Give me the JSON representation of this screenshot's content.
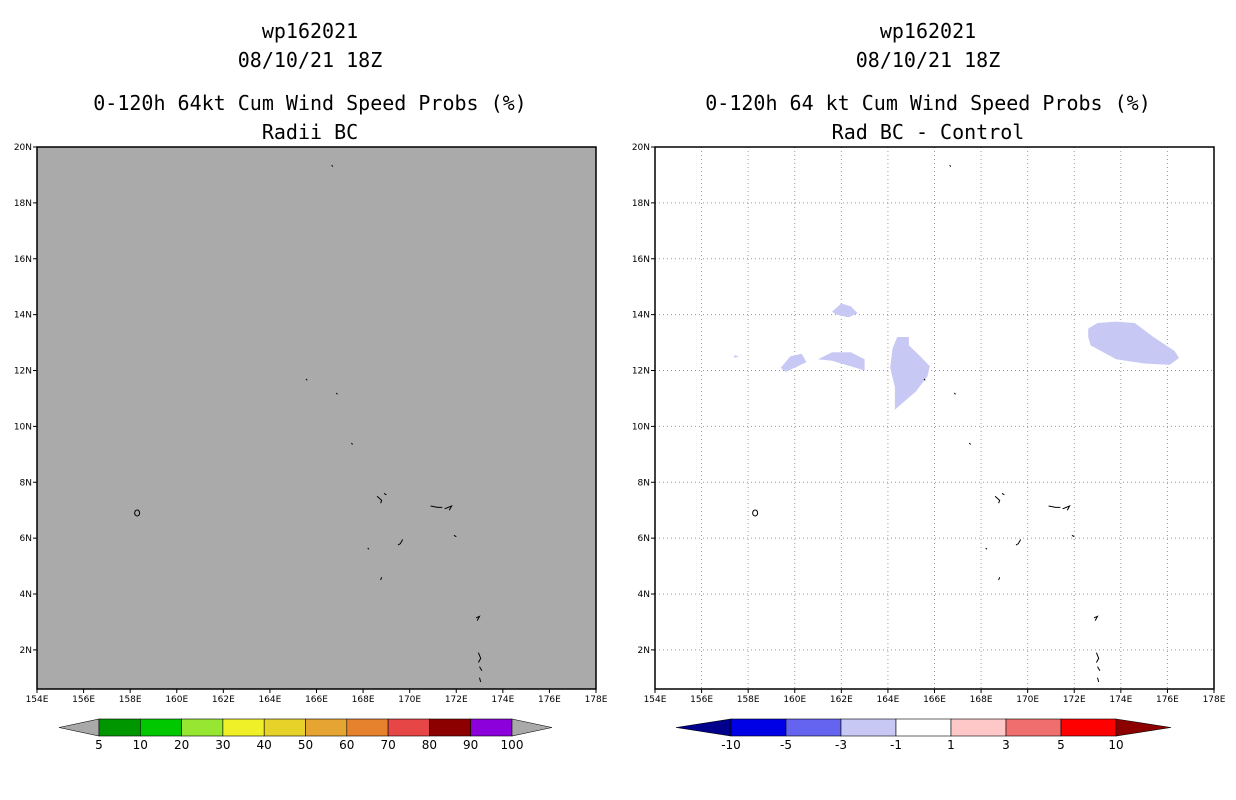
{
  "chart_data": [
    {
      "type": "map",
      "storm_id": "wp162021",
      "datetime": "08/10/21 18Z",
      "title": "0-120h 64kt Cum Wind Speed Probs (%)",
      "subtitle": "Radii BC",
      "background_color": "#aaaaaa",
      "lon_ticks": [
        "154E",
        "156E",
        "158E",
        "160E",
        "162E",
        "164E",
        "166E",
        "168E",
        "170E",
        "172E",
        "174E",
        "176E",
        "178E"
      ],
      "lat_ticks": [
        "2N",
        "4N",
        "6N",
        "8N",
        "10N",
        "12N",
        "14N",
        "16N",
        "18N",
        "20N"
      ],
      "lon_range": [
        154,
        178
      ],
      "lat_range": [
        0.6,
        20
      ],
      "colorbar": {
        "labels": [
          "5",
          "10",
          "20",
          "30",
          "40",
          "50",
          "60",
          "70",
          "80",
          "90",
          "100"
        ],
        "colors": [
          "#a9a9a9",
          "#009600",
          "#00c800",
          "#96e632",
          "#f0f028",
          "#e6d228",
          "#e6a532",
          "#e6822d",
          "#e64646",
          "#8c0000",
          "#8c00dc",
          "#a9a9a9"
        ]
      }
    },
    {
      "type": "map",
      "storm_id": "wp162021",
      "datetime": "08/10/21 18Z",
      "title": "0-120h 64 kt Cum Wind Speed Probs (%)",
      "subtitle": "Rad BC - Control",
      "background_color": "#ffffff",
      "lon_ticks": [
        "154E",
        "156E",
        "158E",
        "160E",
        "162E",
        "164E",
        "166E",
        "168E",
        "170E",
        "172E",
        "174E",
        "176E",
        "178E"
      ],
      "lat_ticks": [
        "2N",
        "4N",
        "6N",
        "8N",
        "10N",
        "12N",
        "14N",
        "16N",
        "18N",
        "20N"
      ],
      "lon_range": [
        154,
        178
      ],
      "lat_range": [
        0.6,
        20
      ],
      "regions": [
        {
          "category": "-3 to -1",
          "points": [
            [
              157.4,
              12.55
            ],
            [
              157.6,
              12.5
            ],
            [
              157.4,
              12.45
            ]
          ]
        },
        {
          "category": "-3 to -1",
          "points": [
            [
              159.4,
              12.1
            ],
            [
              159.8,
              12.5
            ],
            [
              160.3,
              12.6
            ],
            [
              160.5,
              12.3
            ],
            [
              160.0,
              12.1
            ],
            [
              159.6,
              11.95
            ]
          ]
        },
        {
          "category": "-3 to -1",
          "points": [
            [
              161.0,
              12.4
            ],
            [
              161.6,
              12.65
            ],
            [
              162.4,
              12.65
            ],
            [
              163.0,
              12.4
            ],
            [
              163.0,
              12.0
            ],
            [
              162.4,
              12.15
            ],
            [
              161.6,
              12.35
            ]
          ]
        },
        {
          "category": "-3 to -1",
          "points": [
            [
              161.6,
              14.1
            ],
            [
              162.0,
              14.4
            ],
            [
              162.4,
              14.3
            ],
            [
              162.7,
              14.05
            ],
            [
              162.3,
              13.9
            ],
            [
              161.8,
              14.0
            ]
          ]
        },
        {
          "category": "-3 to -1",
          "points": [
            [
              164.4,
              13.2
            ],
            [
              164.9,
              13.2
            ],
            [
              164.9,
              12.9
            ],
            [
              165.4,
              12.5
            ],
            [
              165.8,
              12.15
            ],
            [
              165.7,
              11.8
            ],
            [
              165.2,
              11.25
            ],
            [
              164.3,
              10.6
            ],
            [
              164.3,
              11.4
            ],
            [
              164.1,
              12.1
            ],
            [
              164.2,
              12.8
            ]
          ]
        },
        {
          "category": "-3 to -1",
          "points": [
            [
              172.6,
              13.5
            ],
            [
              173.0,
              13.7
            ],
            [
              173.8,
              13.75
            ],
            [
              174.6,
              13.7
            ],
            [
              175.4,
              13.2
            ],
            [
              176.3,
              12.7
            ],
            [
              176.5,
              12.45
            ],
            [
              176.1,
              12.2
            ],
            [
              175.0,
              12.25
            ],
            [
              173.8,
              12.4
            ],
            [
              172.7,
              12.9
            ],
            [
              172.6,
              13.2
            ]
          ]
        }
      ],
      "colorbar": {
        "labels": [
          "-10",
          "-5",
          "-3",
          "-1",
          "1",
          "3",
          "5",
          "10"
        ],
        "colors": [
          "#00008c",
          "#0000e6",
          "#6464f0",
          "#c8c8f5",
          "#ffffff",
          "#ffc8c8",
          "#f06e6e",
          "#ff0000",
          "#8c0000"
        ]
      }
    }
  ]
}
